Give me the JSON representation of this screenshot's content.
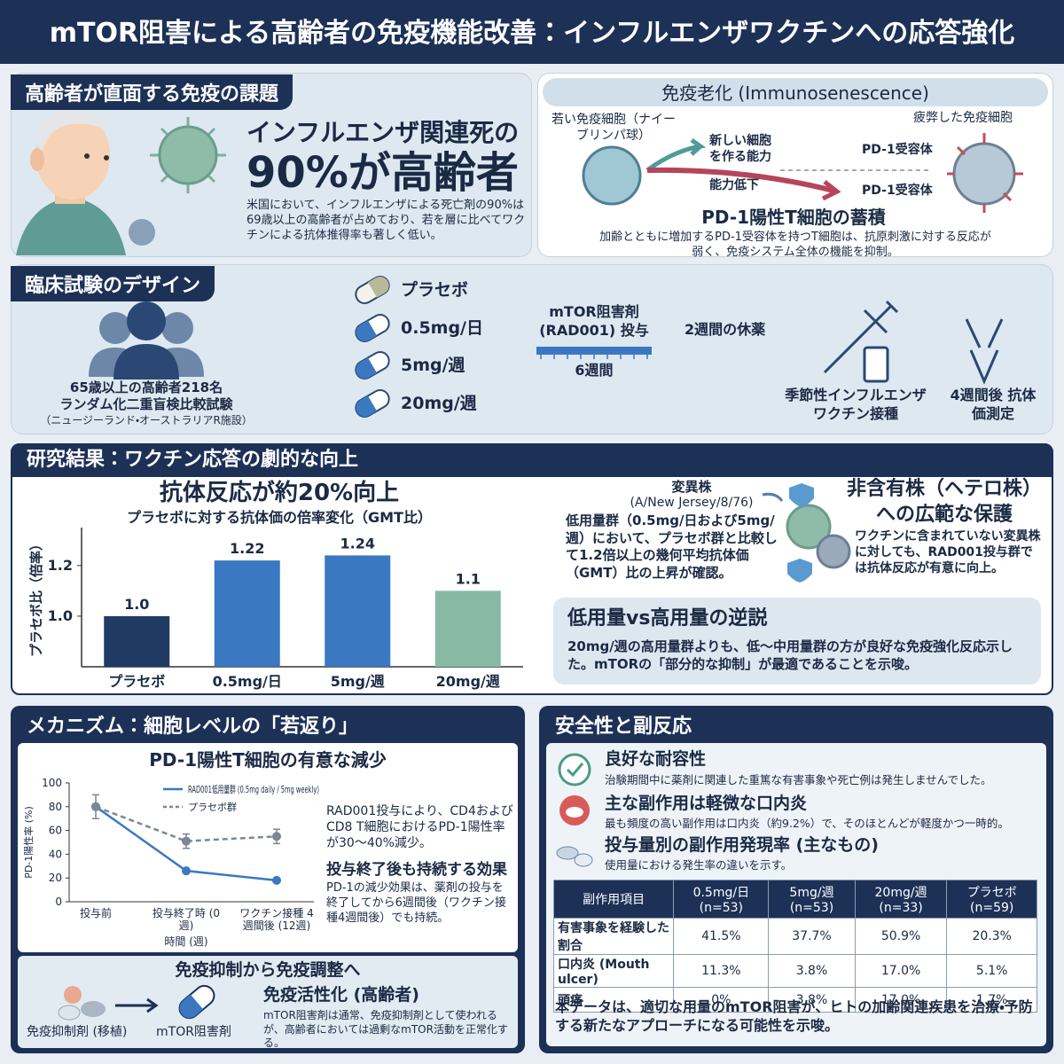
{
  "header": {
    "title": "mTOR阻害による高齢者の免疫機能改善：インフルエンザワクチンへの応答強化"
  },
  "challenge": {
    "heading": "高齢者が直面する免疫の課題",
    "lead": "インフルエンザ関連死の",
    "highlight": "90%が高齢者",
    "body": "米国において、インフルエンザによる死亡剤の90%は69歳以上の高齢者が占めており、若を層に比べてワクチンによる抗体推得率も著しく低い。"
  },
  "immunosenescence": {
    "heading": "免疫老化 (Immunosenescence)",
    "young_cell": "若い免疫細胞（ナイーブリンパ球）",
    "ability": "新しい細胞を作る能力",
    "decline": "能力低下",
    "exhausted_cell": "疲弊した免疫細胞",
    "receptor_labels": [
      "PD-1受容体",
      "PD-1受容体"
    ],
    "subheading": "PD-1陽性T細胞の蓄積",
    "body": "加齢とともに増加するPD-1受容体を持つT細胞は、抗原刺激に対する反応が弱く、免疫システム全体の機能を抑制。"
  },
  "design": {
    "heading": "臨床試験のデザイン",
    "participants": [
      "65歳以上の高齢者218名",
      "ランダム化二重盲検比較試験",
      "（ニュージーランド・オーストラリアR施設）"
    ],
    "doses": [
      "プラセボ",
      "0.5mg/日",
      "5mg/週",
      "20mg/週"
    ],
    "drug": "mTOR阻害剤 (RAD001) 投与",
    "duration": "6週間",
    "washout": "2週間の休薬",
    "vaccine": "季節性インフルエンザ ワクチン接種",
    "measure": "4週間後 抗体価測定"
  },
  "results": {
    "heading": "研究結果：ワクチン応答の劇的な向上",
    "strain": "変異株",
    "strain_name": "(A/New Jersey/8/76)",
    "strain_body": "低用量群（0.5mg/日および5mg/週）において、プラセボ群と比較して1.2倍以上の幾何平均抗体価（GMT）比の上昇が確認。",
    "hetero_heading": "非含有株（ヘテロ株）への広範な保護",
    "hetero_body": "ワクチンに含まれていない変異株に対しても、RAD001投与群では抗体反応が有意に向上。",
    "paradox_heading": "低用量vs高用量の逆説",
    "paradox_body": "20mg/週の高用量群よりも、低〜中用量群の方が良好な免疫強化反応示した。mTORの「部分的な抑制」が最適であることを示唆。"
  },
  "mechanism": {
    "heading": "メカニズム：細胞レベルの「若返り」",
    "note": "RAD001投与により、CD4およびCD8 T細胞におけるPD-1陽性率が30〜40%減少。",
    "effect_heading": "投与終了後も持続する効果",
    "effect_body": "PD-1の減少効果は、薬剤の投与を終了してから6週間後（ワクチン接種4週間後）でも持続。",
    "shift_heading": "免疫抑制から免疫調整へ",
    "from_label": "免疫抑制剤 (移植)",
    "to_label": "mTOR阻害剤",
    "to_heading": "免疫活性化 (高齢者)",
    "to_body": "mTOR阻害剤は通常、免疫抑制剤として使われるが、高齢者においては過剰なmTOR活動を正常化する。"
  },
  "safety": {
    "heading": "安全性と副反応",
    "tolerance_heading": "良好な耐容性",
    "tolerance_body": "治験期間中に薬剤に関連した重篤な有害事象や死亡例は発生しませんでした。",
    "ulcer_heading": "主な副作用は軽微な口内炎",
    "ulcer_body": "最も頻度の高い副作用は口内炎（約9.2%）で、そのほとんどが軽度かつ一時的。",
    "rate_heading": "投与量別の副作用発現率 (主なもの)",
    "rate_body": "使用量における発生率の違いを示す。",
    "table": {
      "header": [
        "副作用項目",
        "0.5mg/日 (n=53)",
        "5mg/週 (n=53)",
        "20mg/週 (n=33)",
        "プラセボ (n=59)"
      ],
      "rows": [
        [
          "有害事象を経験した割合",
          "41.5%",
          "37.7%",
          "50.9%",
          "20.3%"
        ],
        [
          "口内炎 (Mouth ulcer)",
          "11.3%",
          "3.8%",
          "17.0%",
          "5.1%"
        ],
        [
          "頭痛",
          "0%",
          "3.8%",
          "17.0%",
          "1.7%"
        ]
      ]
    },
    "footer": "本データは、適切な用量のmTOR阻害が、ヒトの加齢関連疾患を治療・予防する新たなアプローチになる可能性を示唆。"
  },
  "chart_data": [
    {
      "type": "bar",
      "title": "抗体反応が約20%向上",
      "subtitle": "プラセボに対する抗体価の倍率変化（GMT比）",
      "ylabel": "プラセボ比（倍率）",
      "categories": [
        "プラセボ",
        "0.5mg/日",
        "5mg/週",
        "20mg/週"
      ],
      "values": [
        1.0,
        1.22,
        1.24,
        1.1
      ],
      "value_labels": [
        "1.0",
        "1.22",
        "1.24",
        "1.1"
      ],
      "colors": [
        "#1f3a63",
        "#3a78c2",
        "#3a78c2",
        "#87b9a5"
      ],
      "ylim": [
        0.8,
        1.35
      ],
      "yticks": [
        {
          "value": 1.0,
          "label": "1.0"
        },
        1.2
      ]
    },
    {
      "type": "line",
      "title": "PD-1陽性T細胞の有意な減少",
      "ylabel": "PD-1陽性率 (%)",
      "xlabel": "時間 (週)",
      "categories": [
        "投与前",
        "投与終了時 (0週)",
        "ワクチン接種 4週間後 (12週)"
      ],
      "series": [
        {
          "name": "RAD001低用量群 (0.5mg daily / 5mg weekly)",
          "color": "#3a78c2",
          "values": [
            80,
            26,
            18
          ]
        },
        {
          "name": "プラセボ群",
          "color": "#7b8794",
          "dashed": true,
          "values": [
            80,
            51,
            55
          ],
          "errors": [
            10,
            6,
            6
          ]
        }
      ],
      "ylim": [
        0,
        100
      ],
      "yticks": [
        0,
        20,
        40,
        60,
        80,
        100
      ]
    }
  ]
}
